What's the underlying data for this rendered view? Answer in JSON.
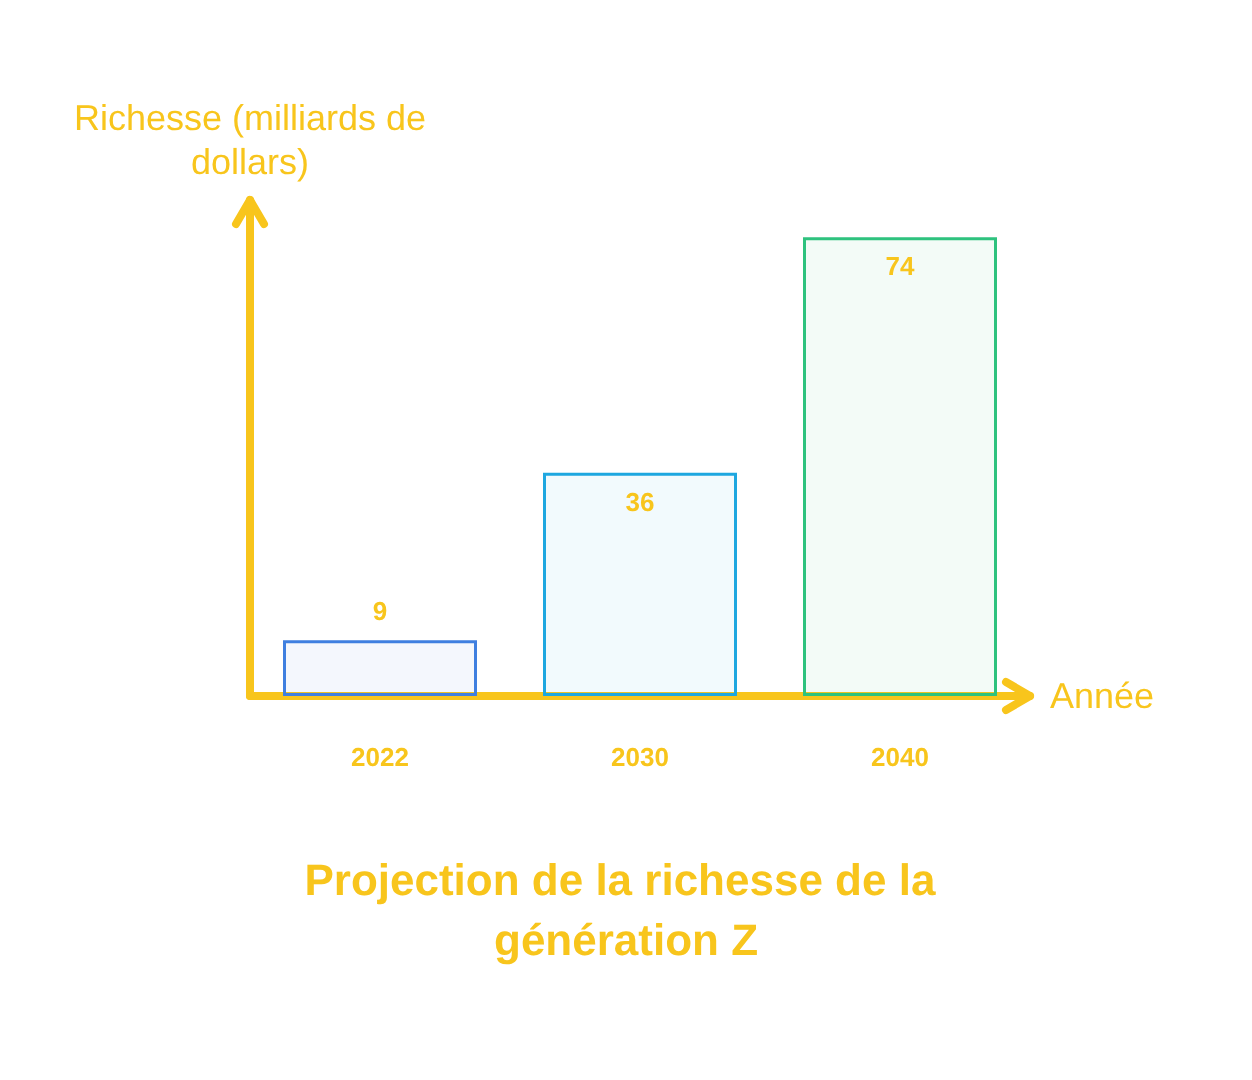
{
  "chart_data": {
    "type": "bar",
    "title": "Projection de la richesse de la génération Z",
    "xlabel": "Année",
    "ylabel": "Richesse (milliards de dollars)",
    "categories": [
      "2022",
      "2030",
      "2040"
    ],
    "values": [
      9,
      36,
      74
    ],
    "colors": [
      "#3f7fe0",
      "#1ea7e0",
      "#2ec27e"
    ],
    "data_labels": true,
    "grid": false,
    "tick_labels": "x"
  }
}
